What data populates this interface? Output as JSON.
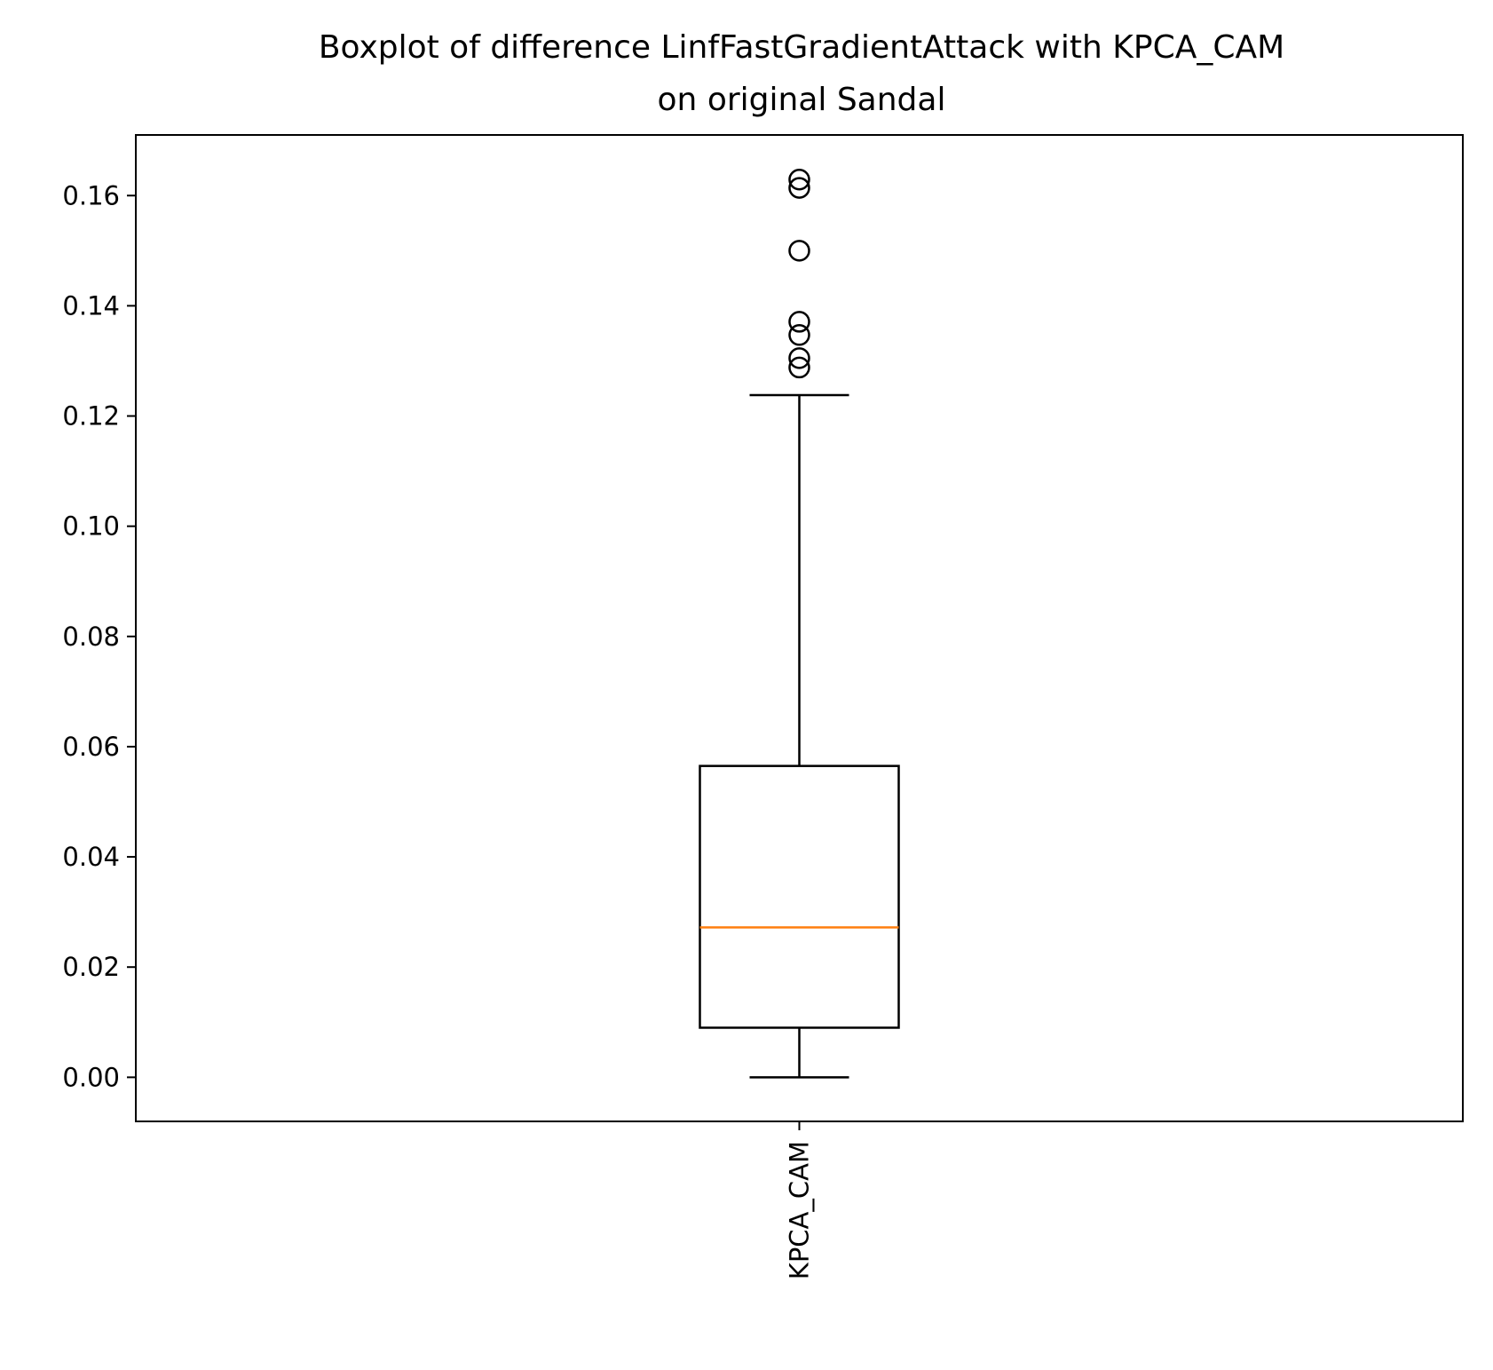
{
  "chart_data": {
    "type": "boxplot",
    "title": "Boxplot of difference LinfFastGradientAttack with KPCA_CAM\non original Sandal",
    "title_lines": [
      "Boxplot of difference LinfFastGradientAttack with KPCA_CAM",
      "on original Sandal"
    ],
    "xlabel": "",
    "ylabel": "",
    "categories": [
      "KPCA_CAM"
    ],
    "ylim": [
      -0.008,
      0.171
    ],
    "yticks": [
      0.0,
      0.02,
      0.04,
      0.06,
      0.08,
      0.1,
      0.12,
      0.14,
      0.16
    ],
    "ytick_labels": [
      "0.00",
      "0.02",
      "0.04",
      "0.06",
      "0.08",
      "0.10",
      "0.12",
      "0.14",
      "0.16"
    ],
    "grid": false,
    "boxes": [
      {
        "category": "KPCA_CAM",
        "whisker_low": 0.0,
        "q1": 0.009,
        "median": 0.0272,
        "q3": 0.0565,
        "whisker_high": 0.1238,
        "outliers": [
          0.1288,
          0.1305,
          0.1347,
          0.1371,
          0.15,
          0.1614,
          0.1629
        ]
      }
    ],
    "colors": {
      "box": "#000000",
      "median": "#ff7f0e",
      "outlier": "#000000"
    }
  }
}
